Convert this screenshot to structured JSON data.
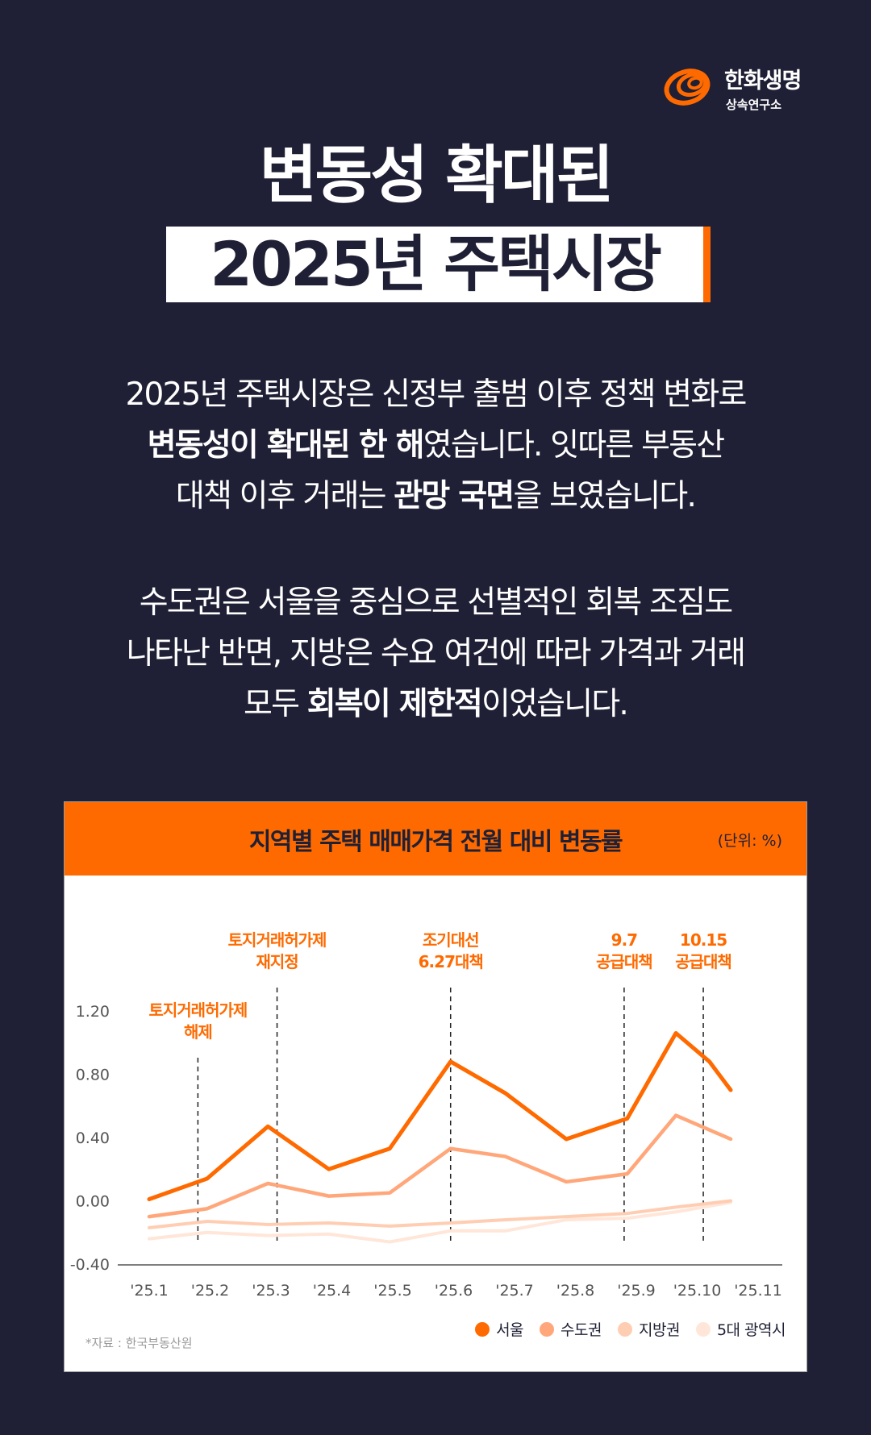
{
  "brand": {
    "name": "한화생명",
    "sub": "상속연구소",
    "logo_color": "#ff6a00"
  },
  "title": {
    "line1": "변동성 확대된",
    "line2": "2025년 주택시장"
  },
  "paragraph1": {
    "line1": "2025년 주택시장은 신정부 출범 이후 정책 변화로",
    "line2_bold": "변동성이 확대된 한 해",
    "line2_rest": "였습니다. 잇따른 부동산",
    "line3_pre": "대책 이후 거래는 ",
    "line3_bold": "관망 국면",
    "line3_post": "을 보였습니다."
  },
  "paragraph2": {
    "line1": "수도권은 서울을 중심으로 선별적인 회복 조짐도",
    "line2": "나타난 반면, 지방은 수요 여건에 따라 가격과 거래",
    "line3_pre": "모두 ",
    "line3_bold": "회복이 제한적",
    "line3_post": "이었습니다."
  },
  "card": {
    "title": "지역별 주택 매매가격 전월 대비 변동률",
    "unit": "(단위: %)",
    "source": "*자료 : 한국부동산원"
  },
  "colors": {
    "background": "#1f2035",
    "accent": "#ff6a00",
    "seoul": "#ff6a00",
    "capital": "#ffa77a",
    "provinces": "#ffcdb2",
    "metro5": "#ffe6d8",
    "annotation": "#ff6a00"
  },
  "chart_data": {
    "type": "line",
    "x": [
      "'25.1",
      "'25.2",
      "'25.3",
      "'25.4",
      "'25.5",
      "'25.6",
      "'25.7",
      "'25.8",
      "'25.9",
      "'25.10",
      "'25.11"
    ],
    "xlabel": "",
    "ylabel": "",
    "yticks": [
      "1.20",
      "0.80",
      "0.40",
      "0.00",
      "-0.40"
    ],
    "ylim": [
      -0.4,
      1.2
    ],
    "grid": false,
    "legend_position": "bottom-right",
    "series": [
      {
        "name": "서울",
        "x": [
          0,
          0.95,
          1.95,
          2.95,
          3.95,
          4.95,
          5.85,
          6.85,
          7.85,
          8.65,
          9.2,
          9.55
        ],
        "values": [
          0.01,
          0.14,
          0.47,
          0.2,
          0.33,
          0.88,
          0.68,
          0.39,
          0.52,
          1.06,
          0.88,
          0.7
        ]
      },
      {
        "name": "수도권",
        "x": [
          0,
          0.95,
          1.95,
          2.95,
          3.95,
          4.95,
          5.85,
          6.85,
          7.85,
          8.65,
          9.55
        ],
        "values": [
          -0.1,
          -0.05,
          0.11,
          0.03,
          0.05,
          0.33,
          0.28,
          0.12,
          0.17,
          0.54,
          0.39
        ]
      },
      {
        "name": "지방권",
        "x": [
          0,
          0.95,
          1.95,
          2.95,
          3.95,
          4.95,
          5.85,
          6.85,
          7.85,
          8.65,
          9.55
        ],
        "values": [
          -0.17,
          -0.13,
          -0.15,
          -0.14,
          -0.16,
          -0.14,
          -0.12,
          -0.1,
          -0.08,
          -0.04,
          0.0
        ]
      },
      {
        "name": "5대 광역시",
        "x": [
          0,
          0.95,
          1.95,
          2.95,
          3.95,
          4.95,
          5.85,
          6.85,
          7.85,
          8.65,
          9.55
        ],
        "values": [
          -0.24,
          -0.2,
          -0.22,
          -0.21,
          -0.26,
          -0.19,
          -0.19,
          -0.12,
          -0.11,
          -0.07,
          -0.01
        ]
      }
    ],
    "events": [
      {
        "x": 0.8,
        "lines": [
          "토지거래허가제",
          "해제"
        ]
      },
      {
        "x": 2.1,
        "lines": [
          "토지거래허가제",
          "재지정"
        ]
      },
      {
        "x": 4.95,
        "lines": [
          "조기대선",
          "6.27대책"
        ]
      },
      {
        "x": 7.8,
        "lines": [
          "9.7",
          "공급대책"
        ]
      },
      {
        "x": 9.1,
        "lines": [
          "10.15",
          "공급대책"
        ]
      }
    ]
  }
}
